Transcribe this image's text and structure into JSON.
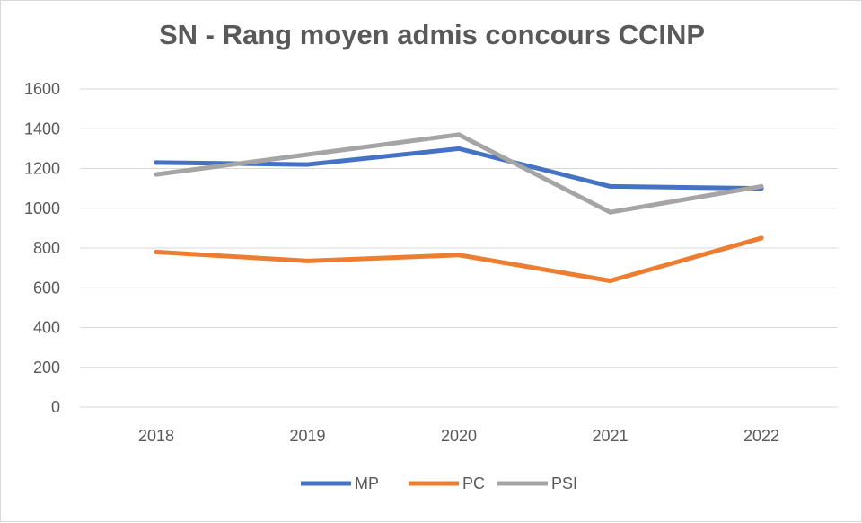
{
  "chart_data": {
    "type": "line",
    "title": "SN - Rang moyen admis concours CCINP",
    "categories": [
      "2018",
      "2019",
      "2020",
      "2021",
      "2022"
    ],
    "y_ticks": [
      "0",
      "200",
      "400",
      "600",
      "800",
      "1000",
      "1200",
      "1400",
      "1600"
    ],
    "ylim": [
      0,
      1600
    ],
    "grid": true,
    "legend_position": "bottom",
    "series": [
      {
        "name": "MP",
        "color": "#4472c4",
        "values": [
          1230,
          1220,
          1300,
          1110,
          1100
        ]
      },
      {
        "name": "PC",
        "color": "#ed7d31",
        "values": [
          780,
          735,
          765,
          635,
          850
        ]
      },
      {
        "name": "PSI",
        "color": "#a5a5a5",
        "values": [
          1170,
          1270,
          1370,
          980,
          1110
        ]
      }
    ]
  }
}
